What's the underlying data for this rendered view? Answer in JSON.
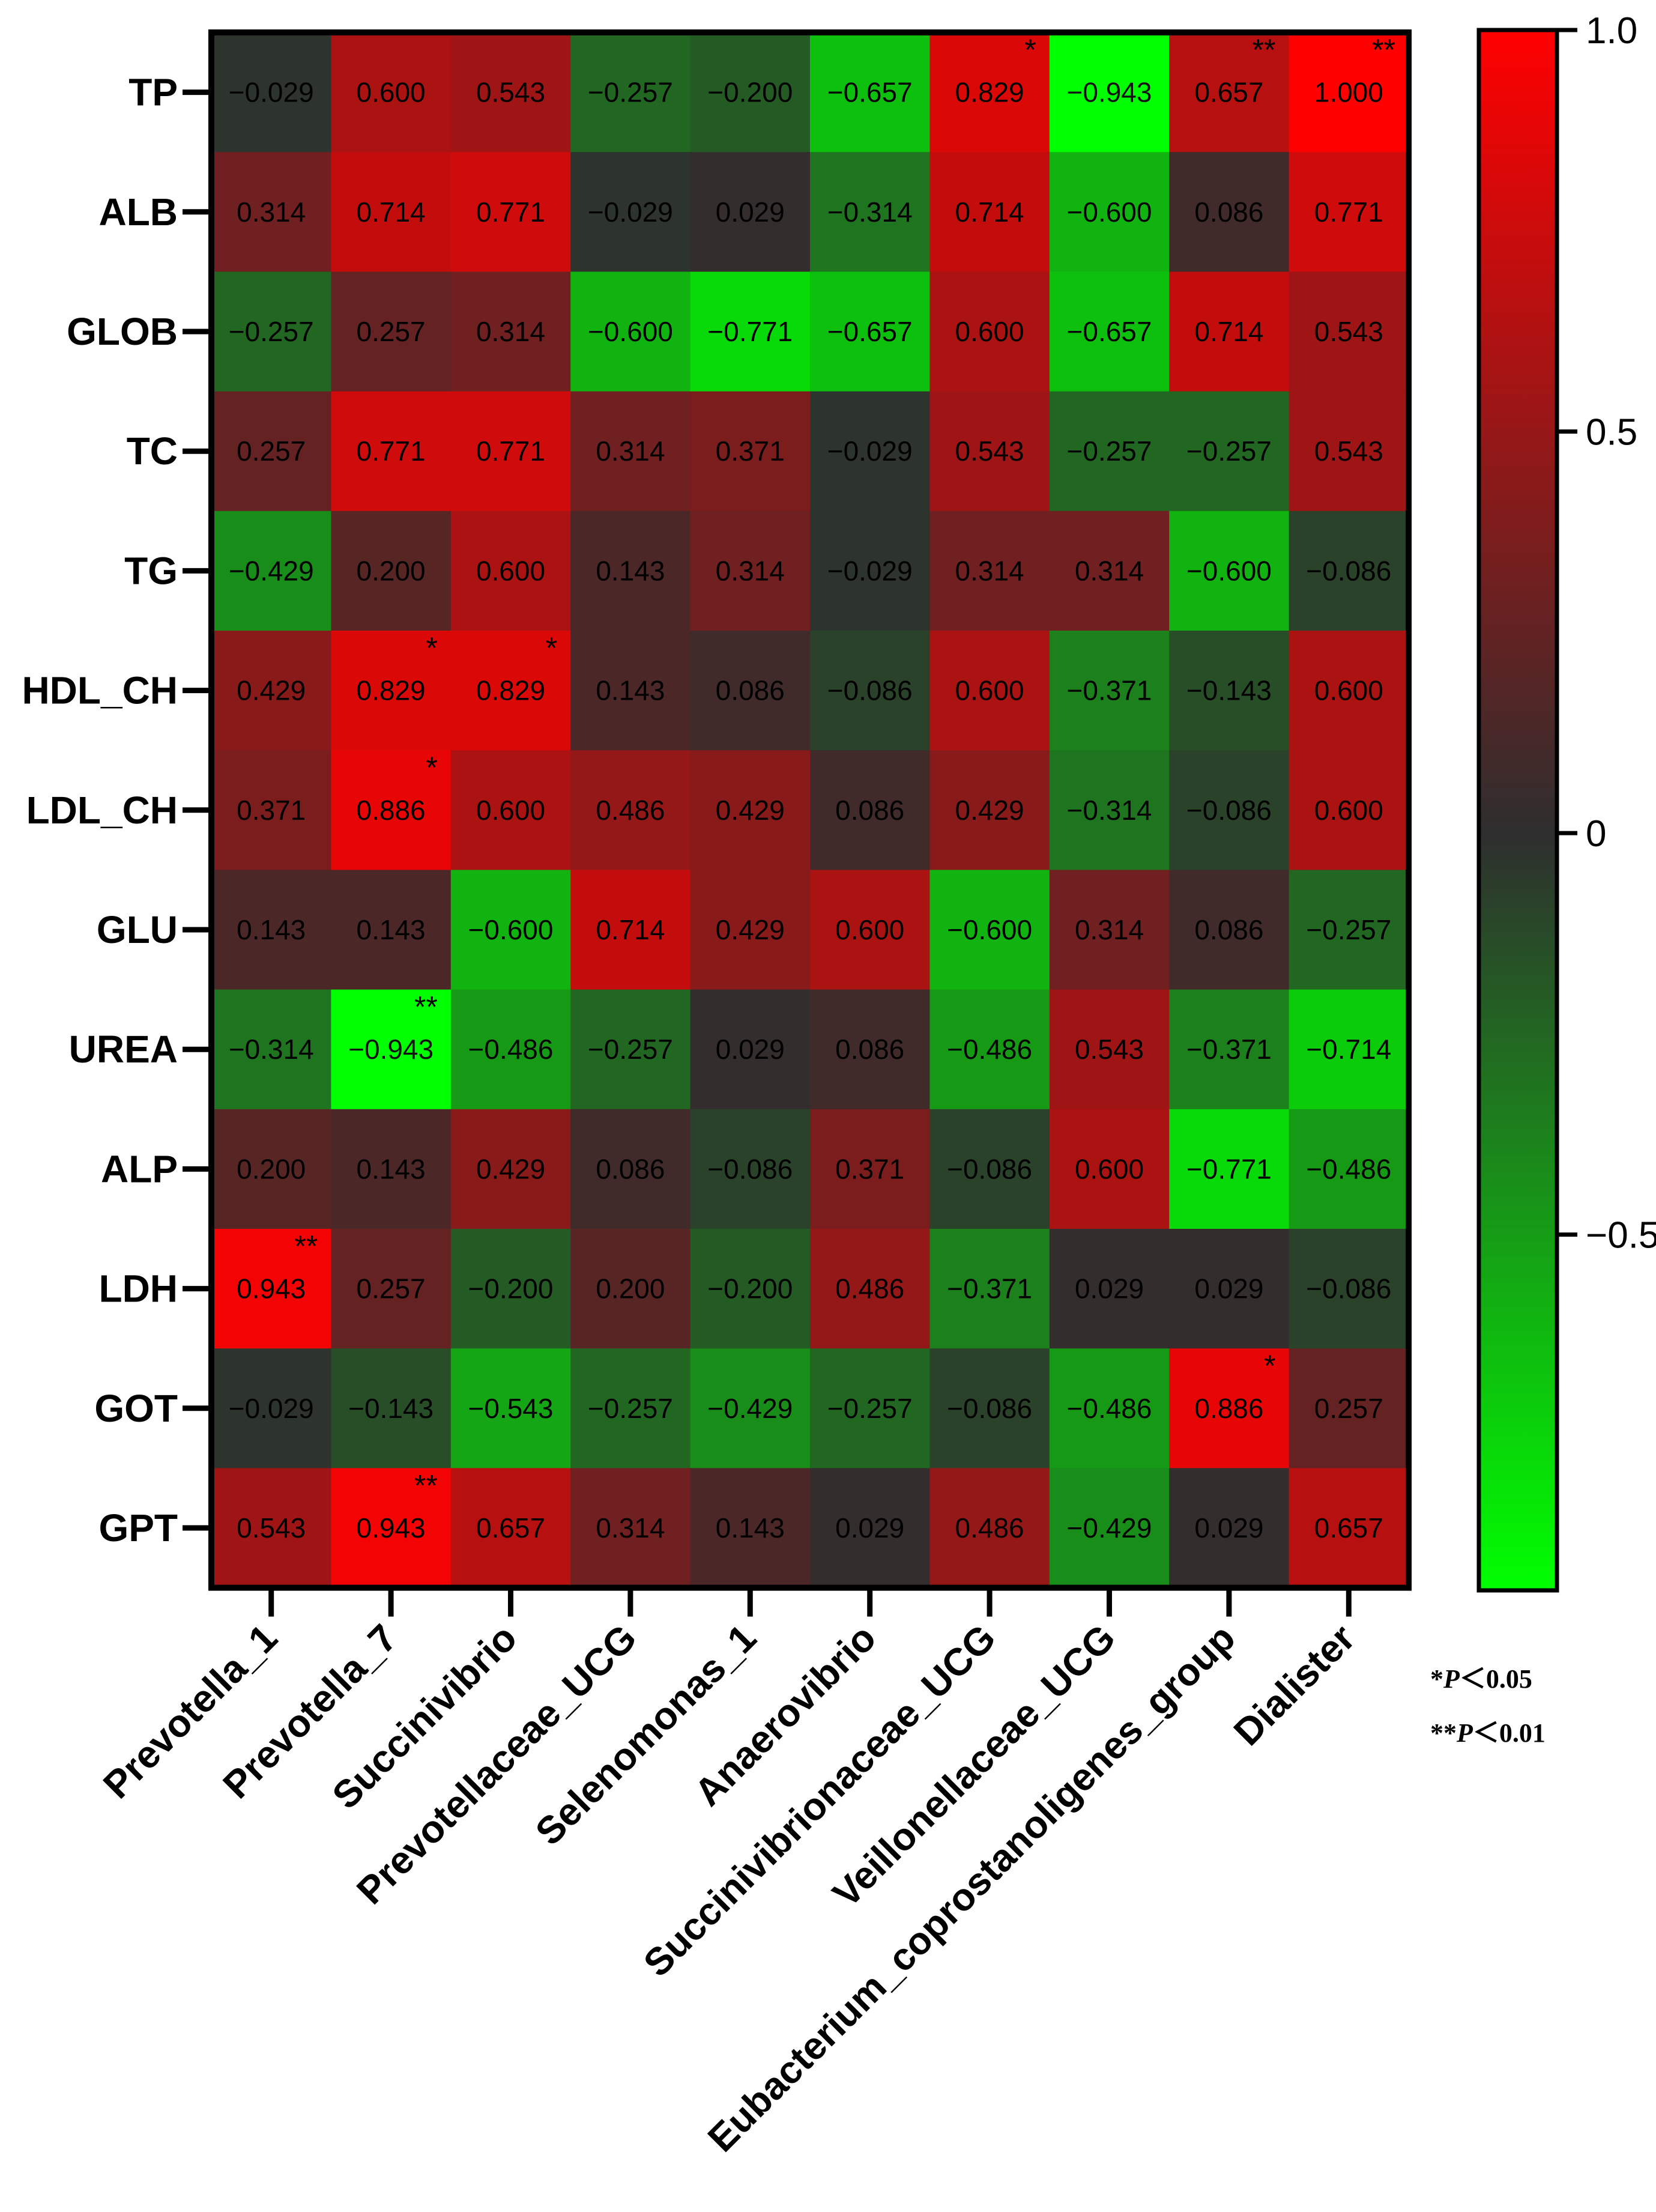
{
  "chart_data": {
    "type": "heatmap",
    "title": "",
    "rows": [
      "TP",
      "ALB",
      "GLOB",
      "TC",
      "TG",
      "HDL_CH",
      "LDL_CH",
      "GLU",
      "UREA",
      "ALP",
      "LDH",
      "GOT",
      "GPT"
    ],
    "columns": [
      "Prevotella_1",
      "Prevotella_7",
      "Succinivibrio",
      "Prevotellaceae_UCG",
      "Selenomonas_1",
      "Anaerovibrio",
      "Succinivibrionaceae_UCG",
      "Veillonellaceae_UCG",
      "Eubacterium_coprostanoligenes_group",
      "Dialister"
    ],
    "values": [
      [
        -0.029,
        0.6,
        0.543,
        -0.257,
        -0.2,
        -0.657,
        0.829,
        -0.943,
        0.657,
        1.0
      ],
      [
        0.314,
        0.714,
        0.771,
        -0.029,
        0.029,
        -0.314,
        0.714,
        -0.6,
        0.086,
        0.771
      ],
      [
        -0.257,
        0.257,
        0.314,
        -0.6,
        -0.771,
        -0.657,
        0.6,
        -0.657,
        0.714,
        0.543
      ],
      [
        0.257,
        0.771,
        0.771,
        0.314,
        0.371,
        -0.029,
        0.543,
        -0.257,
        -0.257,
        0.543
      ],
      [
        -0.429,
        0.2,
        0.6,
        0.143,
        0.314,
        -0.029,
        0.314,
        0.314,
        -0.6,
        -0.086
      ],
      [
        0.429,
        0.829,
        0.829,
        0.143,
        0.086,
        -0.086,
        0.6,
        -0.371,
        -0.143,
        0.6
      ],
      [
        0.371,
        0.886,
        0.6,
        0.486,
        0.429,
        0.086,
        0.429,
        -0.314,
        -0.086,
        0.6
      ],
      [
        0.143,
        0.143,
        -0.6,
        0.714,
        0.429,
        0.6,
        -0.6,
        0.314,
        0.086,
        -0.257
      ],
      [
        -0.314,
        -0.943,
        -0.486,
        -0.257,
        0.029,
        0.086,
        -0.486,
        0.543,
        -0.371,
        -0.714
      ],
      [
        0.2,
        0.143,
        0.429,
        0.086,
        -0.086,
        0.371,
        -0.086,
        0.6,
        -0.771,
        -0.486
      ],
      [
        0.943,
        0.257,
        -0.2,
        0.2,
        -0.2,
        0.486,
        -0.371,
        0.029,
        0.029,
        -0.086
      ],
      [
        -0.029,
        -0.143,
        -0.543,
        -0.257,
        -0.429,
        -0.257,
        -0.086,
        -0.486,
        0.886,
        0.257
      ],
      [
        0.543,
        0.943,
        0.657,
        0.314,
        0.143,
        0.029,
        0.486,
        -0.429,
        0.029,
        0.657
      ]
    ],
    "labels": [
      [
        "−0.029",
        "0.600",
        "0.543",
        "−0.257",
        "−0.200",
        "−0.657",
        "0.829",
        "−0.943",
        "0.657",
        "1.000"
      ],
      [
        "0.314",
        "0.714",
        "0.771",
        "−0.029",
        "0.029",
        "−0.314",
        "0.714",
        "−0.600",
        "0.086",
        "0.771"
      ],
      [
        "−0.257",
        "0.257",
        "0.314",
        "−0.600",
        "−0.771",
        "−0.657",
        "0.600",
        "−0.657",
        "0.714",
        "0.543"
      ],
      [
        "0.257",
        "0.771",
        "0.771",
        "0.314",
        "0.371",
        "−0.029",
        "0.543",
        "−0.257",
        "−0.257",
        "0.543"
      ],
      [
        "−0.429",
        "0.200",
        "0.600",
        "0.143",
        "0.314",
        "−0.029",
        "0.314",
        "0.314",
        "−0.600",
        "−0.086"
      ],
      [
        "0.429",
        "0.829",
        "0.829",
        "0.143",
        "0.086",
        "−0.086",
        "0.600",
        "−0.371",
        "−0.143",
        "0.600"
      ],
      [
        "0.371",
        "0.886",
        "0.600",
        "0.486",
        "0.429",
        "0.086",
        "0.429",
        "−0.314",
        "−0.086",
        "0.600"
      ],
      [
        "0.143",
        "0.143",
        "−0.600",
        "0.714",
        "0.429",
        "0.600",
        "−0.600",
        "0.314",
        "0.086",
        "−0.257"
      ],
      [
        "−0.314",
        "−0.943",
        "−0.486",
        "−0.257",
        "0.029",
        "0.086",
        "−0.486",
        "0.543",
        "−0.371",
        "−0.714"
      ],
      [
        "0.200",
        "0.143",
        "0.429",
        "0.086",
        "−0.086",
        "0.371",
        "−0.086",
        "0.600",
        "−0.771",
        "−0.486"
      ],
      [
        "0.943",
        "0.257",
        "−0.200",
        "0.200",
        "−0.200",
        "0.486",
        "−0.371",
        "0.029",
        "0.029",
        "−0.086"
      ],
      [
        "−0.029",
        "−0.143",
        "−0.543",
        "−0.257",
        "−0.429",
        "−0.257",
        "−0.086",
        "−0.486",
        "0.886",
        "0.257"
      ],
      [
        "0.543",
        "0.943",
        "0.657",
        "0.314",
        "0.143",
        "0.029",
        "0.486",
        "−0.429",
        "0.029",
        "0.657"
      ]
    ],
    "significance": [
      {
        "row": 0,
        "col": 6,
        "mark": "*"
      },
      {
        "row": 0,
        "col": 8,
        "mark": "**"
      },
      {
        "row": 0,
        "col": 9,
        "mark": "**"
      },
      {
        "row": 5,
        "col": 1,
        "mark": "*"
      },
      {
        "row": 5,
        "col": 2,
        "mark": "*"
      },
      {
        "row": 6,
        "col": 1,
        "mark": "*"
      },
      {
        "row": 8,
        "col": 1,
        "mark": "**"
      },
      {
        "row": 10,
        "col": 0,
        "mark": "**"
      },
      {
        "row": 11,
        "col": 8,
        "mark": "*"
      },
      {
        "row": 12,
        "col": 1,
        "mark": "**"
      }
    ],
    "colorbar": {
      "range": [
        -0.943,
        1.0
      ],
      "ticks": [
        {
          "value": 1.0,
          "label": "1.0"
        },
        {
          "value": 0.5,
          "label": "0.5"
        },
        {
          "value": 0.0,
          "label": "0"
        },
        {
          "value": -0.5,
          "label": "−0.5"
        }
      ],
      "colors": {
        "high": "#ff0000",
        "mid": "#2e2e2e",
        "low": "#00ff00"
      }
    },
    "significance_legend": [
      {
        "stars": "*",
        "symbol": "P",
        "text": "＜0.05"
      },
      {
        "stars": "**",
        "symbol": "P",
        "text": "＜0.01"
      }
    ]
  }
}
